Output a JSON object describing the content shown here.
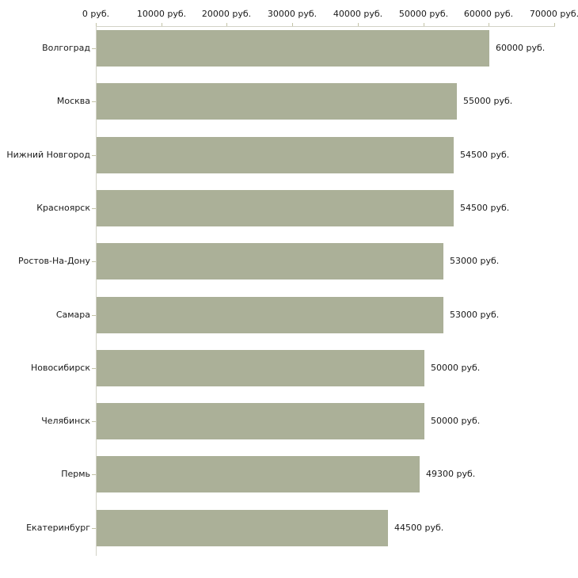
{
  "chart_data": {
    "type": "bar",
    "orientation": "horizontal",
    "title": "",
    "xlabel": "",
    "ylabel": "",
    "categories": [
      "Волгоград",
      "Москва",
      "Нижний Новгород",
      "Красноярск",
      "Ростов-На-Дону",
      "Самара",
      "Новосибирск",
      "Челябинск",
      "Пермь",
      "Екатеринбург"
    ],
    "values": [
      60000,
      55000,
      54500,
      54500,
      53000,
      53000,
      50000,
      50000,
      49300,
      44500
    ],
    "value_labels": [
      "60000 руб.",
      "55000 руб.",
      "54500 руб.",
      "54500 руб.",
      "53000 руб.",
      "53000 руб.",
      "50000 руб.",
      "50000 руб.",
      "49300 руб.",
      "44500 руб."
    ],
    "x_ticks": [
      0,
      10000,
      20000,
      30000,
      40000,
      50000,
      60000,
      70000
    ],
    "x_tick_labels": [
      "0 руб.",
      "10000 руб.",
      "20000 руб.",
      "30000 руб.",
      "40000 руб.",
      "50000 руб.",
      "60000 руб.",
      "70000 руб."
    ],
    "xlim": [
      0,
      70000
    ],
    "grid": false,
    "legend": "none",
    "axis_position": "top-left",
    "colors": {
      "bar": "#abb098",
      "axis_line": "#d2d2c6",
      "tick": "#c3c3a6",
      "text": "#1a1a1a",
      "background": "#ffffff"
    }
  }
}
